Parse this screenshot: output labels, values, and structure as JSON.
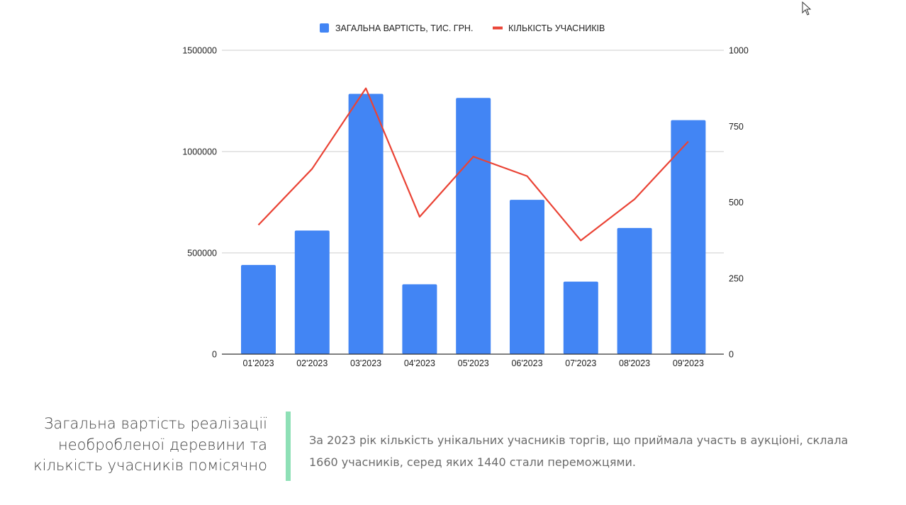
{
  "chart_data": {
    "type": "bar",
    "categories": [
      "01'2023",
      "02'2023",
      "03'2023",
      "04'2023",
      "05'2023",
      "06'2023",
      "07'2023",
      "08'2023",
      "09'2023"
    ],
    "series": [
      {
        "name": "ЗАГАЛЬНА ВАРТІСТЬ, ТИС. ГРН.",
        "type": "bar",
        "axis": "left",
        "color": "#4285f4",
        "values": [
          440000,
          610000,
          1285000,
          345000,
          1265000,
          762000,
          358000,
          623000,
          1155000
        ]
      },
      {
        "name": "КІЛЬКІСТЬ УЧАСНИКІВ",
        "type": "line",
        "axis": "right",
        "color": "#ea4335",
        "values": [
          425,
          610,
          875,
          452,
          650,
          586,
          374,
          510,
          700
        ]
      }
    ],
    "y_left": {
      "min": 0,
      "max": 1500000,
      "ticks": [
        0,
        500000,
        1000000,
        1500000
      ]
    },
    "y_right": {
      "min": 0,
      "max": 1000,
      "ticks": [
        "0",
        "250",
        "500",
        "750",
        "1000"
      ]
    },
    "grid": true,
    "legend_position": "top"
  },
  "caption": {
    "title_lines": [
      "Загальна вартість реалізації",
      "необробленої деревини та",
      "кількість учасників помісячно"
    ],
    "text_lines": [
      "За 2023 рік кількість унікальних учасників торгів, що приймала участь в аукціоні, склала",
      "1660 учасників, серед яких 1440 стали переможцями."
    ]
  },
  "colors": {
    "bar": "#4285f4",
    "line": "#ea4335",
    "accent": "#8ee0b6"
  }
}
